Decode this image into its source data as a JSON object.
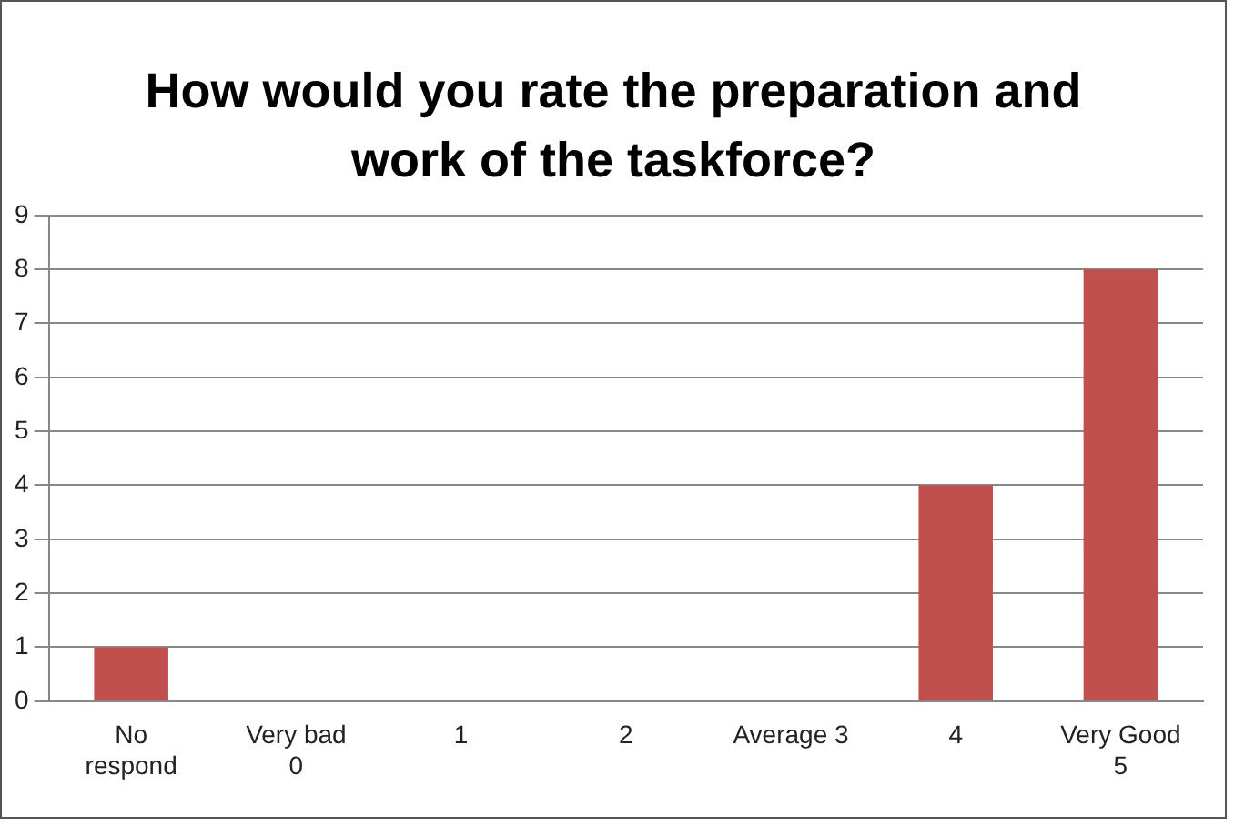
{
  "chart_data": {
    "type": "bar",
    "title": "How would you rate the preparation and work of the taskforce?",
    "categories": [
      "No\nrespond",
      "Very bad\n0",
      "1",
      "2",
      "Average 3",
      "4",
      "Very Good\n5"
    ],
    "values": [
      1,
      0,
      0,
      0,
      0,
      4,
      8
    ],
    "color": "#c0504d",
    "ylim": [
      0,
      9
    ],
    "yticks": [
      0,
      1,
      2,
      3,
      4,
      5,
      6,
      7,
      8,
      9
    ],
    "grid": "y",
    "legend": false
  }
}
